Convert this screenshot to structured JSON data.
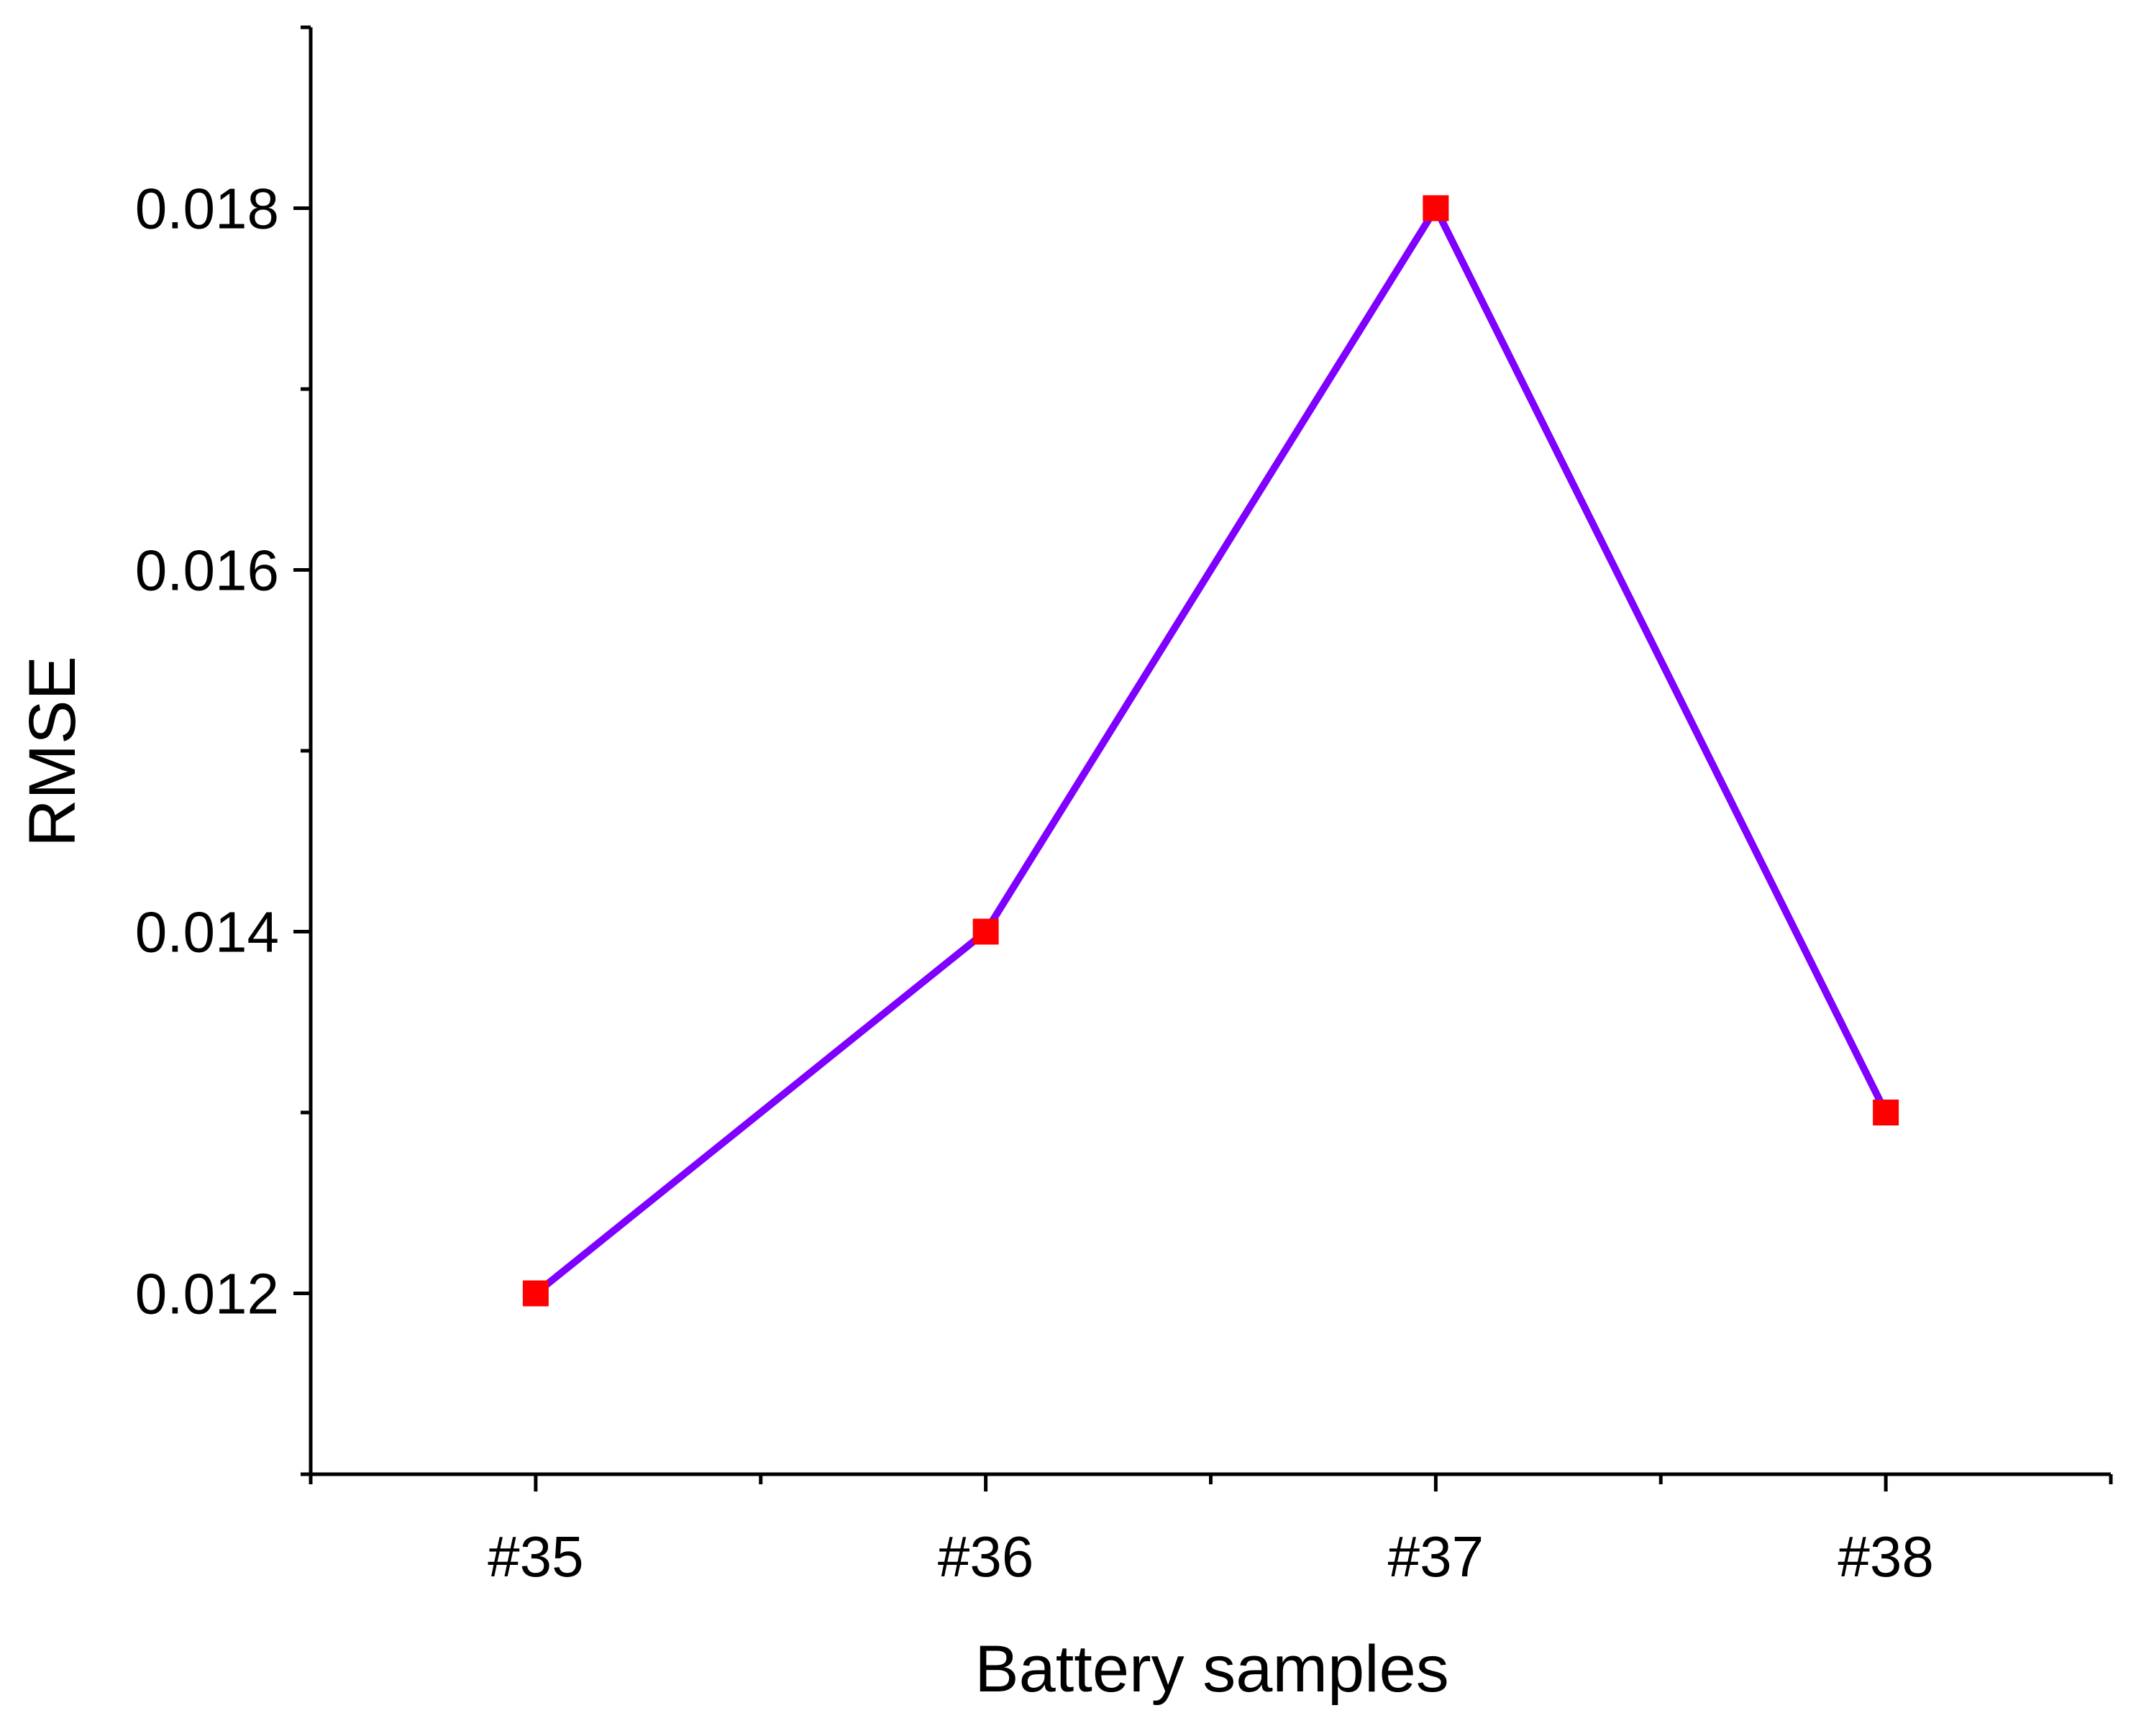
{
  "chart_data": {
    "type": "line",
    "title": "",
    "xlabel": "Battery samples",
    "ylabel": "RMSE",
    "categories": [
      "#35",
      "#36",
      "#37",
      "#38"
    ],
    "series": [
      {
        "values": [
          0.012,
          0.014,
          0.018,
          0.013
        ],
        "line_color": "#8000FF",
        "marker": "square",
        "marker_color": "#FF0000"
      }
    ],
    "ylim": [
      0.011,
      0.019
    ],
    "yticks_major": [
      0.012,
      0.014,
      0.016,
      0.018
    ],
    "yticks_major_labels": [
      "0.012",
      "0.014",
      "0.016",
      "0.018"
    ],
    "yticks_minor": [
      0.011,
      0.013,
      0.015,
      0.017,
      0.019
    ],
    "xlim": [
      -0.5,
      3.5
    ],
    "grid": false,
    "legend": "none"
  }
}
